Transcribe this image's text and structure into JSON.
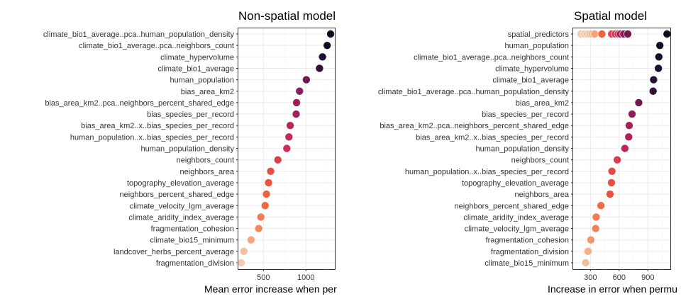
{
  "chart_data": [
    {
      "type": "scatter",
      "title": "Non-spatial model",
      "xlabel": "Mean error increase when per",
      "ylabel": "",
      "xlim": [
        205,
        1340
      ],
      "xticks": [
        500,
        1000
      ],
      "x_minor_ticks": [
        750,
        1250
      ],
      "categories": [
        "climate_bio1_average..pca..human_population_density",
        "climate_bio1_average..pca..neighbors_count",
        "climate_hypervolume",
        "climate_bio1_average",
        "human_population",
        "bias_area_km2",
        "bias_area_km2..pca..neighbors_percent_shared_edge",
        "bias_species_per_record",
        "bias_area_km2..x..bias_species_per_record",
        "human_population..x..bias_species_per_record",
        "human_population_density",
        "neighbors_count",
        "neighbors_area",
        "topography_elevation_average",
        "neighbors_percent_shared_edge",
        "climate_velocity_lgm_average",
        "climate_aridity_index_average",
        "fragmentation_cohesion",
        "climate_bio15_minimum",
        "landcover_herbs_percent_average",
        "fragmentation_division"
      ],
      "values": [
        1290,
        1250,
        1195,
        1160,
        1005,
        925,
        890,
        885,
        815,
        800,
        775,
        670,
        585,
        560,
        535,
        520,
        470,
        445,
        355,
        270,
        240
      ],
      "colors": [
        "#0e0a1f",
        "#120d27",
        "#21102f",
        "#351334",
        "#6e1a4c",
        "#891d57",
        "#9d1e5b",
        "#a11f5a",
        "#b9245a",
        "#c3275a",
        "#cd2d56",
        "#de3e4a",
        "#e94d43",
        "#ec553f",
        "#ef6141",
        "#ef6641",
        "#f17d53",
        "#f28a5a",
        "#f4a57c",
        "#f5c0a0",
        "#f6cbb0"
      ]
    },
    {
      "type": "scatter",
      "title": "Spatial model",
      "xlabel": "Increase in error when permu",
      "ylabel": "",
      "xlim": [
        120,
        1135
      ],
      "xticks": [
        300,
        600,
        900
      ],
      "x_minor_ticks": [
        150,
        450,
        750,
        1050
      ],
      "categories": [
        "spatial_predictors",
        "human_population",
        "climate_bio1_average..pca..neighbors_count",
        "climate_hypervolume",
        "climate_bio1_average",
        "climate_bio1_average..pca..human_population_density",
        "bias_area_km2",
        "bias_species_per_record",
        "bias_area_km2..pca..neighbors_percent_shared_edge",
        "bias_area_km2..x..bias_species_per_record",
        "human_population_density",
        "neighbors_count",
        "human_population..x..bias_species_per_record",
        "topography_elevation_average",
        "neighbors_area",
        "neighbors_percent_shared_edge",
        "climate_aridity_index_average",
        "climate_velocity_lgm_average",
        "fragmentation_cohesion",
        "fragmentation_division",
        "climate_bio15_minimum"
      ],
      "values": [
        1100,
        1025,
        1015,
        1010,
        960,
        955,
        805,
        735,
        705,
        700,
        660,
        580,
        525,
        520,
        505,
        410,
        360,
        355,
        305,
        275,
        250
      ],
      "colors": [
        "#0e0a1f",
        "#120d27",
        "#180e2a",
        "#1e0f2d",
        "#2a1132",
        "#301232",
        "#6e1a4c",
        "#8f1d58",
        "#a61f5a",
        "#ad2059",
        "#c0265b",
        "#dc3b4b",
        "#e44a44",
        "#e94d43",
        "#ea5141",
        "#ef6b44",
        "#f17e52",
        "#f28358",
        "#f3976a",
        "#f4ae88",
        "#f5be9b"
      ],
      "spatial_predictor_values": [
        200,
        240,
        268,
        295,
        318,
        345,
        420,
        522,
        560,
        590,
        612,
        648,
        690
      ],
      "spatial_predictor_colors": [
        "#f6cbb0",
        "#f6c7ab",
        "#f5c2a4",
        "#f5bc9b",
        "#f4b38f",
        "#f4a57c",
        "#ef6441",
        "#e23e4c",
        "#d4304f",
        "#c0265b",
        "#ac2059",
        "#8b1d58",
        "#6e1a4c"
      ]
    }
  ]
}
